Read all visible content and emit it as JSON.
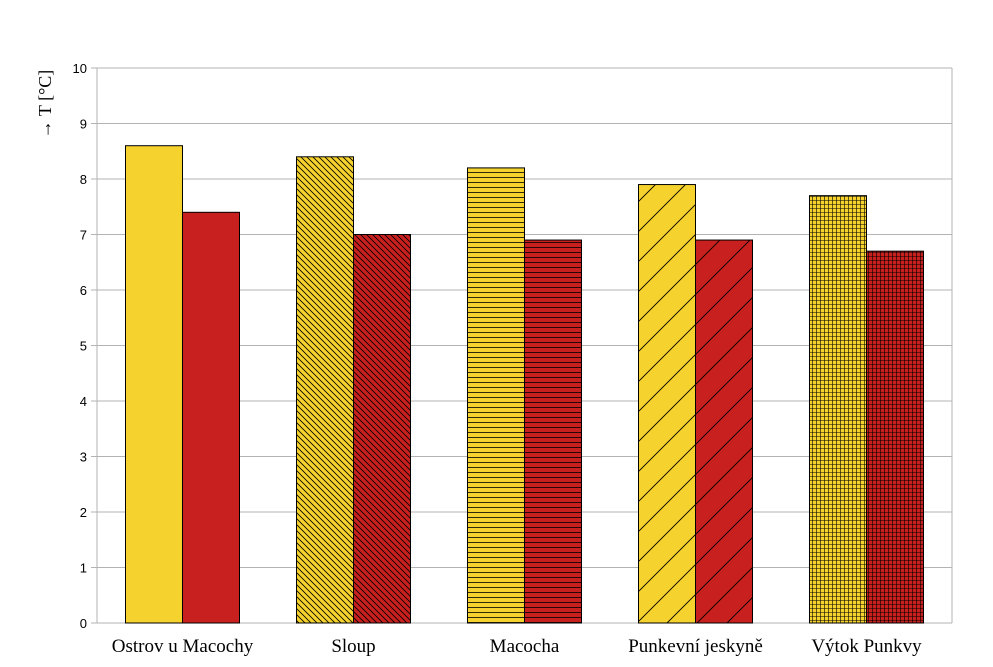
{
  "chart_data": {
    "type": "bar",
    "categories": [
      "Ostrov u Macochy",
      "Sloup",
      "Macocha",
      "Punkevní jeskyně",
      "Výtok Punkvy"
    ],
    "series": [
      {
        "values": [
          8.6,
          8.4,
          8.2,
          7.9,
          7.7
        ],
        "color": "#f5d22d"
      },
      {
        "values": [
          7.4,
          7.0,
          6.9,
          6.9,
          6.7
        ],
        "color": "#c8201e"
      }
    ],
    "patterns": [
      "solid",
      "diagonal-dense",
      "horizontal",
      "diagonal-wide",
      "grid"
    ],
    "ylabel": "→ T [°C]",
    "ylim": [
      0,
      10
    ],
    "yticks": [
      "0",
      "1",
      "2",
      "3",
      "4",
      "5",
      "6",
      "7",
      "8",
      "9",
      "10"
    ],
    "grid": true,
    "legend": "none"
  }
}
